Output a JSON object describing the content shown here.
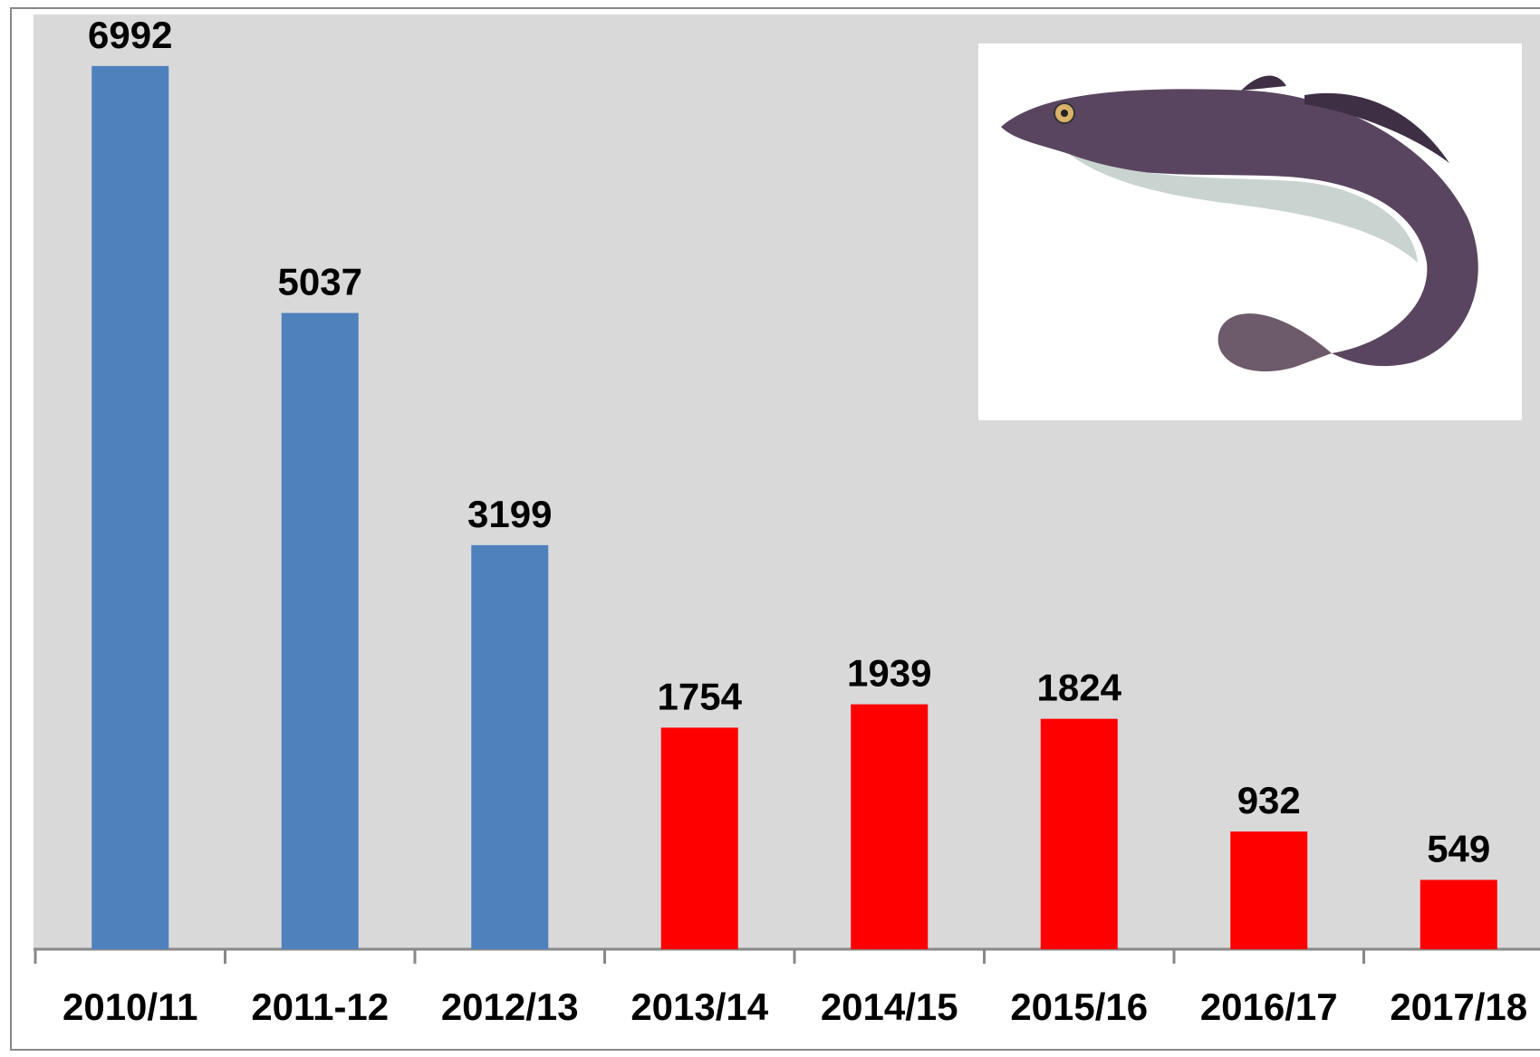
{
  "chart_data": {
    "type": "bar",
    "categories": [
      "2010/11",
      "2011-12",
      "2012/13",
      "2013/14",
      "2014/15",
      "2015/16",
      "2016/17",
      "2017/18"
    ],
    "values": [
      6992,
      5037,
      3199,
      1754,
      1939,
      1824,
      932,
      549
    ],
    "colors": [
      "#4f81bd",
      "#4f81bd",
      "#4f81bd",
      "#ff0000",
      "#ff0000",
      "#ff0000",
      "#ff0000",
      "#ff0000"
    ],
    "ylim": [
      0,
      7400
    ]
  }
}
